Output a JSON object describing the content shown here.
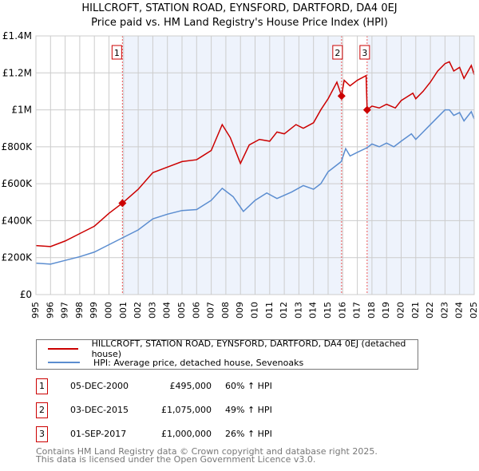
{
  "title": "HILLCROFT, STATION ROAD, EYNSFORD, DARTFORD, DA4 0EJ",
  "subtitle": "Price paid vs. HM Land Registry's House Price Index (HPI)",
  "chart_data": {
    "type": "line",
    "xlim": [
      1995,
      2025
    ],
    "ylim": [
      0,
      1400000
    ],
    "y_ticks": [
      {
        "v": 0,
        "label": "£0"
      },
      {
        "v": 200000,
        "label": "£200K"
      },
      {
        "v": 400000,
        "label": "£400K"
      },
      {
        "v": 600000,
        "label": "£600K"
      },
      {
        "v": 800000,
        "label": "£800K"
      },
      {
        "v": 1000000,
        "label": "£1M"
      },
      {
        "v": 1200000,
        "label": "£1.2M"
      },
      {
        "v": 1400000,
        "label": "£1.4M"
      }
    ],
    "x_ticks": [
      "1995",
      "1996",
      "1997",
      "1998",
      "1999",
      "2000",
      "2001",
      "2002",
      "2003",
      "2004",
      "2005",
      "2006",
      "2007",
      "2008",
      "2009",
      "2010",
      "2011",
      "2012",
      "2013",
      "2014",
      "2015",
      "2016",
      "2017",
      "2018",
      "2019",
      "2020",
      "2021",
      "2022",
      "2023",
      "2024",
      "2025"
    ],
    "series": [
      {
        "name": "HILLCROFT, STATION ROAD, EYNSFORD, DARTFORD, DA4 0EJ (detached house)",
        "color": "#cc0000",
        "points": [
          [
            1995,
            265000
          ],
          [
            1996,
            260000
          ],
          [
            1997,
            290000
          ],
          [
            1998,
            330000
          ],
          [
            1999,
            370000
          ],
          [
            2000,
            440000
          ],
          [
            2000.92,
            495000
          ],
          [
            2002,
            570000
          ],
          [
            2003,
            660000
          ],
          [
            2004,
            690000
          ],
          [
            2005,
            720000
          ],
          [
            2006,
            730000
          ],
          [
            2007,
            780000
          ],
          [
            2007.75,
            920000
          ],
          [
            2008.3,
            850000
          ],
          [
            2009,
            710000
          ],
          [
            2009.6,
            810000
          ],
          [
            2010.3,
            840000
          ],
          [
            2011,
            830000
          ],
          [
            2011.5,
            880000
          ],
          [
            2012,
            870000
          ],
          [
            2012.8,
            920000
          ],
          [
            2013.3,
            900000
          ],
          [
            2014,
            930000
          ],
          [
            2014.5,
            1000000
          ],
          [
            2015,
            1060000
          ],
          [
            2015.6,
            1150000
          ],
          [
            2015.92,
            1075000
          ],
          [
            2016.1,
            1160000
          ],
          [
            2016.5,
            1130000
          ],
          [
            2017,
            1160000
          ],
          [
            2017.6,
            1185000
          ],
          [
            2017.67,
            1000000
          ],
          [
            2018,
            1020000
          ],
          [
            2018.5,
            1010000
          ],
          [
            2019,
            1030000
          ],
          [
            2019.6,
            1010000
          ],
          [
            2020,
            1050000
          ],
          [
            2020.8,
            1090000
          ],
          [
            2021,
            1060000
          ],
          [
            2021.5,
            1100000
          ],
          [
            2022,
            1150000
          ],
          [
            2022.5,
            1210000
          ],
          [
            2023,
            1250000
          ],
          [
            2023.3,
            1260000
          ],
          [
            2023.6,
            1210000
          ],
          [
            2024,
            1230000
          ],
          [
            2024.3,
            1170000
          ],
          [
            2024.8,
            1240000
          ],
          [
            2025,
            1190000
          ]
        ]
      },
      {
        "name": "HPI: Average price, detached house, Sevenoaks",
        "color": "#5b8dd0",
        "points": [
          [
            1995,
            170000
          ],
          [
            1996,
            165000
          ],
          [
            1997,
            185000
          ],
          [
            1998,
            205000
          ],
          [
            1999,
            230000
          ],
          [
            2000,
            270000
          ],
          [
            2001,
            310000
          ],
          [
            2002,
            350000
          ],
          [
            2003,
            410000
          ],
          [
            2004,
            435000
          ],
          [
            2005,
            455000
          ],
          [
            2006,
            460000
          ],
          [
            2007,
            510000
          ],
          [
            2007.75,
            575000
          ],
          [
            2008.5,
            530000
          ],
          [
            2009.2,
            450000
          ],
          [
            2010,
            510000
          ],
          [
            2010.8,
            550000
          ],
          [
            2011.5,
            520000
          ],
          [
            2012.5,
            555000
          ],
          [
            2013.3,
            590000
          ],
          [
            2014,
            570000
          ],
          [
            2014.5,
            600000
          ],
          [
            2015,
            665000
          ],
          [
            2015.9,
            720000
          ],
          [
            2016.2,
            790000
          ],
          [
            2016.5,
            750000
          ],
          [
            2017,
            770000
          ],
          [
            2017.67,
            795000
          ],
          [
            2018,
            815000
          ],
          [
            2018.5,
            800000
          ],
          [
            2019,
            820000
          ],
          [
            2019.5,
            800000
          ],
          [
            2020,
            830000
          ],
          [
            2020.7,
            870000
          ],
          [
            2021,
            840000
          ],
          [
            2021.5,
            880000
          ],
          [
            2022,
            920000
          ],
          [
            2022.5,
            960000
          ],
          [
            2023,
            1000000
          ],
          [
            2023.3,
            1000000
          ],
          [
            2023.6,
            970000
          ],
          [
            2024,
            985000
          ],
          [
            2024.3,
            940000
          ],
          [
            2024.8,
            990000
          ],
          [
            2025,
            950000
          ]
        ]
      }
    ],
    "sales": [
      {
        "label": "1",
        "x": 2000.92,
        "y": 495000
      },
      {
        "label": "2",
        "x": 2015.92,
        "y": 1075000
      },
      {
        "label": "3",
        "x": 2017.67,
        "y": 1000000
      }
    ],
    "shaded_ranges": [
      [
        2000.92,
        2015.92
      ],
      [
        2017.67,
        2025
      ]
    ],
    "legend": "below"
  },
  "legend": {
    "red": "HILLCROFT, STATION ROAD, EYNSFORD, DARTFORD, DA4 0EJ (detached house)",
    "blue": "HPI: Average price, detached house, Sevenoaks"
  },
  "table": [
    {
      "num": "1",
      "date": "05-DEC-2000",
      "price": "£495,000",
      "hpi": "60% ↑ HPI"
    },
    {
      "num": "2",
      "date": "03-DEC-2015",
      "price": "£1,075,000",
      "hpi": "49% ↑ HPI"
    },
    {
      "num": "3",
      "date": "01-SEP-2017",
      "price": "£1,000,000",
      "hpi": "26% ↑ HPI"
    }
  ],
  "footer": [
    "Contains HM Land Registry data © Crown copyright and database right 2025.",
    "This data is licensed under the Open Government Licence v3.0."
  ]
}
